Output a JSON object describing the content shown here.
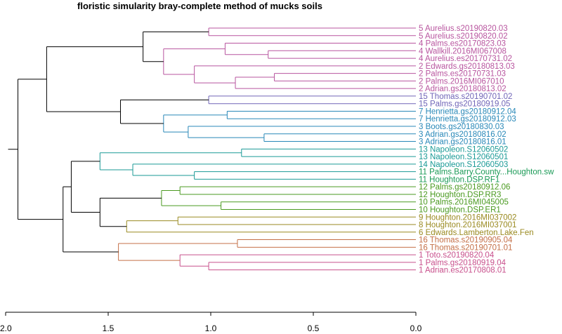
{
  "chart_data": {
    "type": "dendrogram",
    "title": "floristic simularity bray-complete  method of mucks soils",
    "orientation": "horizontal",
    "xlim": [
      2.0,
      0.0
    ],
    "xticks": [
      2.0,
      1.5,
      1.0,
      0.5,
      0.0
    ],
    "xtick_labels": [
      "2.0",
      "1.5",
      "1.0",
      "0.5",
      "0.0"
    ],
    "leaves": [
      {
        "label": "5 Aurelius.s20190820.03",
        "color": "#b8559f"
      },
      {
        "label": "5 Aurelius.s20190820.02",
        "color": "#b8559f"
      },
      {
        "label": "4 Palms.es20170823.03",
        "color": "#b8559f"
      },
      {
        "label": "4 Wallkill.2016MI067008",
        "color": "#b8559f"
      },
      {
        "label": "4 Aurelius.es20170731.02",
        "color": "#b8559f"
      },
      {
        "label": "2 Edwards.gs20180813.03",
        "color": "#b8559f"
      },
      {
        "label": "2 Palms.es20170731.03",
        "color": "#b8559f"
      },
      {
        "label": "2 Palms.2016MI067010",
        "color": "#b8559f"
      },
      {
        "label": "2 Adrian.gs20180813.02",
        "color": "#b8559f"
      },
      {
        "label": "15 Thomas.s20190701.02",
        "color": "#7065b8"
      },
      {
        "label": "15 Palms.gs20180919.05",
        "color": "#7065b8"
      },
      {
        "label": "7 Henrietta.gs20180912.04",
        "color": "#2888b8"
      },
      {
        "label": "7 Henrietta.gs20180912.03",
        "color": "#2888b8"
      },
      {
        "label": "3 Boots.gs20180830.03",
        "color": "#2888b8"
      },
      {
        "label": "3 Adrian.gs20180816.02",
        "color": "#2888b8"
      },
      {
        "label": "3 Adrian.gs20180816.01",
        "color": "#2888b8"
      },
      {
        "label": "13 Napoleon.S12060502",
        "color": "#1a9a96"
      },
      {
        "label": "13 Napoleon.S12060501",
        "color": "#1a9a96"
      },
      {
        "label": "14 Napoleon.S12060503",
        "color": "#1a9a96"
      },
      {
        "label": "11 Palms.Barry.County...Houghton.sw",
        "color": "#1a9a56"
      },
      {
        "label": "11 Houghton.DSP.RF1",
        "color": "#1a9a56"
      },
      {
        "label": "12 Palms.gs20180912.06",
        "color": "#4a9a20"
      },
      {
        "label": "12 Houghton.DSP.RR3",
        "color": "#4a9a20"
      },
      {
        "label": "10 Palms.2016MI045005",
        "color": "#4a9a20"
      },
      {
        "label": "10 Houghton.DSP.ER1",
        "color": "#4a9a20"
      },
      {
        "label": "9 Houghton.2016MI037002",
        "color": "#9a8a20"
      },
      {
        "label": "8 Houghton.2016MI037001",
        "color": "#9a8a20"
      },
      {
        "label": "6 Edwards.Lamberton.Lake.Fen",
        "color": "#9a8a20"
      },
      {
        "label": "16 Thomas.s20190905.04",
        "color": "#c47048"
      },
      {
        "label": "16 Thomas.s20190701.01",
        "color": "#c47048"
      },
      {
        "label": "1 Toto.s20190820.04",
        "color": "#c8508c"
      },
      {
        "label": "1 Palms.gs20180919.04",
        "color": "#c8508c"
      },
      {
        "label": "1 Adrian.es20170808.01",
        "color": "#c8508c"
      }
    ],
    "merges": [
      {
        "a": "L0",
        "b": "L1",
        "height": 1.01,
        "color": "#b8559f"
      },
      {
        "a": "L3",
        "b": "L4",
        "height": 0.72,
        "color": "#b8559f"
      },
      {
        "a": "L2",
        "b": "N1",
        "height": 0.93,
        "color": "#b8559f"
      },
      {
        "a": "L6",
        "b": "L7",
        "height": 0.69,
        "color": "#b8559f"
      },
      {
        "a": "L8",
        "b": "N3",
        "height": 0.88,
        "color": "#b8559f"
      },
      {
        "a": "L5",
        "b": "N4",
        "height": 1.08,
        "color": "#b8559f"
      },
      {
        "a": "N2",
        "b": "N5",
        "height": 1.23,
        "color": "#b8559f"
      },
      {
        "a": "N0",
        "b": "N6",
        "height": 1.33,
        "color": "#000000"
      },
      {
        "a": "L9",
        "b": "L10",
        "height": 1.01,
        "color": "#7065b8"
      },
      {
        "a": "L11",
        "b": "L12",
        "height": 0.92,
        "color": "#2888b8"
      },
      {
        "a": "L14",
        "b": "L15",
        "height": 0.74,
        "color": "#2888b8"
      },
      {
        "a": "L13",
        "b": "N10",
        "height": 1.11,
        "color": "#2888b8"
      },
      {
        "a": "N9",
        "b": "N11",
        "height": 1.23,
        "color": "#2888b8"
      },
      {
        "a": "N8",
        "b": "N12",
        "height": 1.44,
        "color": "#000000"
      },
      {
        "a": "N7",
        "b": "N13",
        "height": 1.8,
        "color": "#000000"
      },
      {
        "a": "L16",
        "b": "L17",
        "height": 0.85,
        "color": "#1a9a96"
      },
      {
        "a": "L19",
        "b": "L20",
        "height": 1.08,
        "color": "#1a9a96"
      },
      {
        "a": "L18",
        "b": "N16",
        "height": 1.38,
        "color": "#1a9a96"
      },
      {
        "a": "N15",
        "b": "N17",
        "height": 1.54,
        "color": "#1a9a96"
      },
      {
        "a": "L21",
        "b": "L22",
        "height": 1.15,
        "color": "#4a9a20"
      },
      {
        "a": "L23",
        "b": "L24",
        "height": 0.95,
        "color": "#4a9a20"
      },
      {
        "a": "N19",
        "b": "N20",
        "height": 1.24,
        "color": "#4a9a20"
      },
      {
        "a": "L25",
        "b": "L26",
        "height": 1.16,
        "color": "#9a8a20"
      },
      {
        "a": "L27",
        "b": "N22",
        "height": 1.41,
        "color": "#9a8a20"
      },
      {
        "a": "N21",
        "b": "N23",
        "height": 1.54,
        "color": "#000000"
      },
      {
        "a": "N18",
        "b": "N24",
        "height": 1.68,
        "color": "#000000"
      },
      {
        "a": "L28",
        "b": "L29",
        "height": 0.87,
        "color": "#c47048"
      },
      {
        "a": "L31",
        "b": "L32",
        "height": 1.01,
        "color": "#c8508c"
      },
      {
        "a": "L30",
        "b": "N27",
        "height": 1.15,
        "color": "#c8508c"
      },
      {
        "a": "N26",
        "b": "N28",
        "height": 1.45,
        "color": "#c47048"
      },
      {
        "a": "N25",
        "b": "N29",
        "height": 1.72,
        "color": "#000000"
      },
      {
        "a": "N14",
        "b": "N30",
        "height": 1.94,
        "color": "#000000"
      }
    ]
  }
}
